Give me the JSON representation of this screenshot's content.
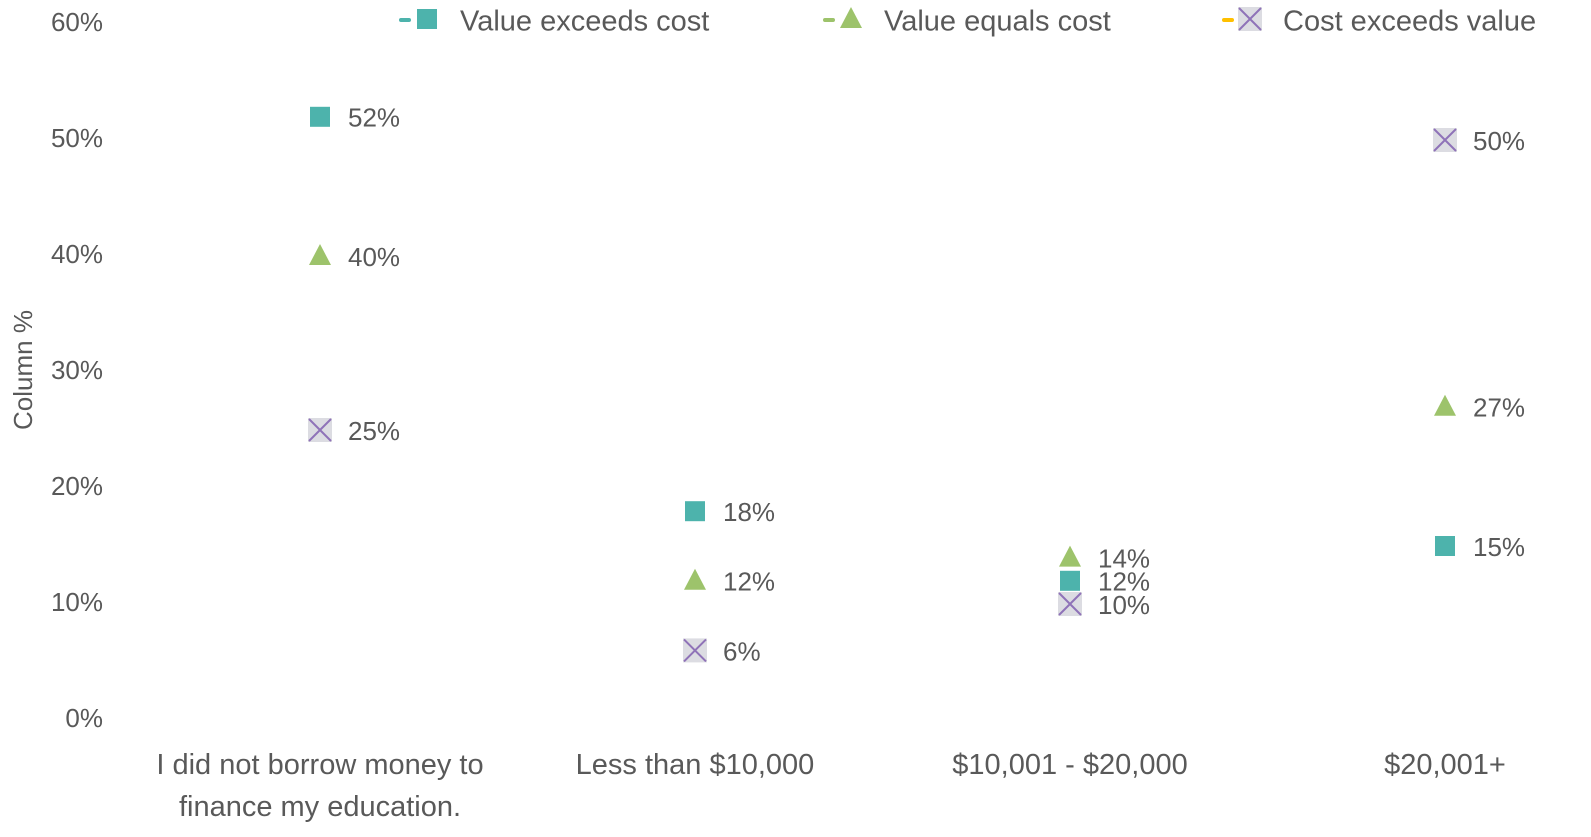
{
  "chart_data": {
    "type": "scatter",
    "ylabel": "Column %",
    "categories": [
      "I did not borrow money to finance my education.",
      "Less than $10,000",
      "$10,001 - $20,000",
      "$20,001+"
    ],
    "series": [
      {
        "name": "Value exceeds cost",
        "color": "#4db3ac",
        "marker": "square",
        "values": [
          52,
          18,
          12,
          15
        ],
        "value_labels": [
          "52%",
          "18%",
          "12%",
          "15%"
        ]
      },
      {
        "name": "Value equals cost",
        "color": "#9dc36b",
        "marker": "triangle",
        "values": [
          40,
          12,
          14,
          27
        ],
        "value_labels": [
          "40%",
          "12%",
          "14%",
          "27%"
        ]
      },
      {
        "name": "Cost exceeds value",
        "color": "#8f72b8",
        "marker": "x",
        "values": [
          25,
          6,
          10,
          50
        ],
        "value_labels": [
          "25%",
          "6%",
          "10%",
          "50%"
        ]
      }
    ],
    "ylim": [
      0,
      60
    ],
    "yticks": [
      {
        "value": 0,
        "label": "0%"
      },
      {
        "value": 10,
        "label": "10%"
      },
      {
        "value": 20,
        "label": "20%"
      },
      {
        "value": 30,
        "label": "30%"
      },
      {
        "value": 40,
        "label": "40%"
      },
      {
        "value": 50,
        "label": "50%"
      },
      {
        "value": 60,
        "label": "60%"
      }
    ],
    "legend": "top"
  }
}
